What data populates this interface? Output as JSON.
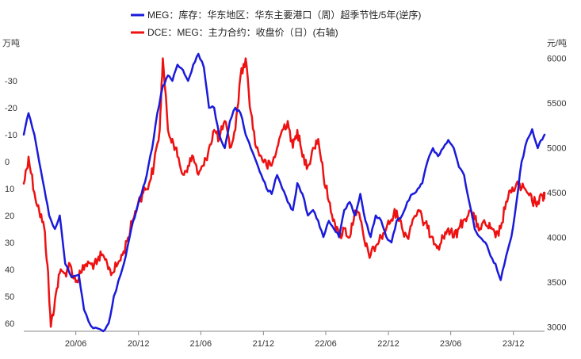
{
  "chart_data": {
    "type": "line",
    "title": "",
    "legend_position": "top-center",
    "grid": false,
    "x_axis": {
      "range": [
        "2020-01",
        "2024-03"
      ],
      "tick_labels": [
        "20/06",
        "20/12",
        "21/06",
        "21/12",
        "22/06",
        "22/12",
        "23/06",
        "23/12"
      ],
      "tick_dates": [
        "2020-06",
        "2020-12",
        "2021-06",
        "2021-12",
        "2022-06",
        "2022-12",
        "2023-06",
        "2023-12"
      ]
    },
    "y_left": {
      "unit": "万吨",
      "reversed": true,
      "range": [
        -40,
        63
      ],
      "tick_values": [
        -30,
        -20,
        -10,
        0,
        10,
        20,
        30,
        40,
        50,
        60
      ],
      "tick_labels": [
        "-30",
        "-20",
        "-10",
        "0",
        "10",
        "20",
        "30",
        "40",
        "50",
        "60"
      ]
    },
    "y_right": {
      "unit": "元/吨",
      "range": [
        2950,
        6050
      ],
      "tick_values": [
        3000,
        3500,
        4000,
        4500,
        5000,
        5500,
        6000
      ],
      "tick_labels": [
        "3000",
        "3500",
        "4000",
        "4500",
        "5000",
        "5500",
        "6000"
      ]
    },
    "series": [
      {
        "name": "MEG：库存：华东地区：华东主要港口（周）超季节性/5年(逆序)",
        "axis": "left",
        "color": "#1a1adb",
        "points": [
          [
            "2020-01-01",
            -10
          ],
          [
            "2020-01-15",
            -18
          ],
          [
            "2020-02-01",
            -10
          ],
          [
            "2020-02-15",
            0
          ],
          [
            "2020-03-01",
            10
          ],
          [
            "2020-03-15",
            20
          ],
          [
            "2020-04-01",
            25
          ],
          [
            "2020-04-15",
            20
          ],
          [
            "2020-05-01",
            38
          ],
          [
            "2020-05-20",
            43
          ],
          [
            "2020-06-10",
            42
          ],
          [
            "2020-06-25",
            55
          ],
          [
            "2020-07-15",
            61
          ],
          [
            "2020-08-05",
            62
          ],
          [
            "2020-08-20",
            63
          ],
          [
            "2020-09-05",
            60
          ],
          [
            "2020-09-20",
            50
          ],
          [
            "2020-10-10",
            42
          ],
          [
            "2020-10-25",
            35
          ],
          [
            "2020-11-10",
            25
          ],
          [
            "2020-11-25",
            18
          ],
          [
            "2020-12-10",
            12
          ],
          [
            "2020-12-25",
            5
          ],
          [
            "2021-01-10",
            -5
          ],
          [
            "2021-01-25",
            -18
          ],
          [
            "2021-02-10",
            -28
          ],
          [
            "2021-02-25",
            -32
          ],
          [
            "2021-03-10",
            -30
          ],
          [
            "2021-03-25",
            -36
          ],
          [
            "2021-04-10",
            -34
          ],
          [
            "2021-04-25",
            -30
          ],
          [
            "2021-05-10",
            -36
          ],
          [
            "2021-05-25",
            -40
          ],
          [
            "2021-06-10",
            -35
          ],
          [
            "2021-06-25",
            -20
          ],
          [
            "2021-07-10",
            -20
          ],
          [
            "2021-07-25",
            -10
          ],
          [
            "2021-08-10",
            -5
          ],
          [
            "2021-08-25",
            -15
          ],
          [
            "2021-09-10",
            -20
          ],
          [
            "2021-09-25",
            -18
          ],
          [
            "2021-10-10",
            -10
          ],
          [
            "2021-10-25",
            -5
          ],
          [
            "2021-11-10",
            0
          ],
          [
            "2021-11-25",
            5
          ],
          [
            "2021-12-10",
            10
          ],
          [
            "2021-12-25",
            12
          ],
          [
            "2022-01-10",
            5
          ],
          [
            "2022-01-25",
            10
          ],
          [
            "2022-02-10",
            15
          ],
          [
            "2022-02-25",
            18
          ],
          [
            "2022-03-10",
            8
          ],
          [
            "2022-03-25",
            12
          ],
          [
            "2022-04-10",
            20
          ],
          [
            "2022-04-25",
            18
          ],
          [
            "2022-05-10",
            22
          ],
          [
            "2022-05-25",
            28
          ],
          [
            "2022-06-10",
            22
          ],
          [
            "2022-06-25",
            25
          ],
          [
            "2022-07-10",
            28
          ],
          [
            "2022-07-25",
            18
          ],
          [
            "2022-08-10",
            15
          ],
          [
            "2022-08-25",
            20
          ],
          [
            "2022-09-10",
            12
          ],
          [
            "2022-09-25",
            22
          ],
          [
            "2022-10-10",
            28
          ],
          [
            "2022-10-25",
            20
          ],
          [
            "2022-11-10",
            22
          ],
          [
            "2022-11-25",
            28
          ],
          [
            "2022-12-10",
            30
          ],
          [
            "2022-12-25",
            22
          ],
          [
            "2023-01-10",
            20
          ],
          [
            "2023-01-25",
            15
          ],
          [
            "2023-02-10",
            12
          ],
          [
            "2023-02-25",
            10
          ],
          [
            "2023-03-10",
            8
          ],
          [
            "2023-03-25",
            0
          ],
          [
            "2023-04-10",
            -5
          ],
          [
            "2023-04-25",
            -2
          ],
          [
            "2023-05-10",
            -5
          ],
          [
            "2023-05-25",
            -8
          ],
          [
            "2023-06-10",
            -5
          ],
          [
            "2023-06-25",
            2
          ],
          [
            "2023-07-10",
            5
          ],
          [
            "2023-07-25",
            15
          ],
          [
            "2023-08-10",
            25
          ],
          [
            "2023-08-25",
            28
          ],
          [
            "2023-09-10",
            30
          ],
          [
            "2023-09-25",
            35
          ],
          [
            "2023-10-10",
            38
          ],
          [
            "2023-10-25",
            44
          ],
          [
            "2023-11-10",
            35
          ],
          [
            "2023-11-25",
            28
          ],
          [
            "2023-12-10",
            15
          ],
          [
            "2023-12-25",
            0
          ],
          [
            "2024-01-10",
            -8
          ],
          [
            "2024-01-25",
            -12
          ],
          [
            "2024-02-10",
            -5
          ],
          [
            "2024-02-20",
            -8
          ],
          [
            "2024-03-01",
            -10
          ]
        ]
      },
      {
        "name": "DCE：MEG：主力合约：收盘价（日）(右轴)",
        "axis": "right",
        "color": "#ee1111",
        "points": [
          [
            "2020-01-01",
            4600
          ],
          [
            "2020-01-15",
            4900
          ],
          [
            "2020-02-01",
            4500
          ],
          [
            "2020-02-15",
            4300
          ],
          [
            "2020-03-01",
            4100
          ],
          [
            "2020-03-10",
            3700
          ],
          [
            "2020-03-20",
            3000
          ],
          [
            "2020-04-01",
            3300
          ],
          [
            "2020-04-15",
            3600
          ],
          [
            "2020-05-01",
            3600
          ],
          [
            "2020-05-15",
            3700
          ],
          [
            "2020-06-01",
            3500
          ],
          [
            "2020-06-15",
            3600
          ],
          [
            "2020-07-01",
            3700
          ],
          [
            "2020-07-15",
            3700
          ],
          [
            "2020-08-01",
            3700
          ],
          [
            "2020-08-15",
            3800
          ],
          [
            "2020-09-01",
            3700
          ],
          [
            "2020-09-15",
            3600
          ],
          [
            "2020-10-01",
            3700
          ],
          [
            "2020-10-15",
            3800
          ],
          [
            "2020-11-01",
            4000
          ],
          [
            "2020-11-15",
            4200
          ],
          [
            "2020-12-01",
            4400
          ],
          [
            "2020-12-15",
            4500
          ],
          [
            "2021-01-01",
            4600
          ],
          [
            "2021-01-15",
            4800
          ],
          [
            "2021-02-01",
            5200
          ],
          [
            "2021-02-10",
            6000
          ],
          [
            "2021-02-25",
            5200
          ],
          [
            "2021-03-10",
            5100
          ],
          [
            "2021-03-25",
            4900
          ],
          [
            "2021-04-10",
            4700
          ],
          [
            "2021-04-25",
            4800
          ],
          [
            "2021-05-10",
            4900
          ],
          [
            "2021-05-25",
            4700
          ],
          [
            "2021-06-10",
            4800
          ],
          [
            "2021-06-25",
            5000
          ],
          [
            "2021-07-10",
            5200
          ],
          [
            "2021-07-25",
            5100
          ],
          [
            "2021-08-10",
            5300
          ],
          [
            "2021-08-25",
            5000
          ],
          [
            "2021-09-10",
            5200
          ],
          [
            "2021-09-25",
            5800
          ],
          [
            "2021-10-10",
            6000
          ],
          [
            "2021-10-25",
            5400
          ],
          [
            "2021-11-10",
            5000
          ],
          [
            "2021-11-25",
            4900
          ],
          [
            "2021-12-10",
            4800
          ],
          [
            "2021-12-25",
            4800
          ],
          [
            "2022-01-10",
            5000
          ],
          [
            "2022-01-25",
            5200
          ],
          [
            "2022-02-10",
            5300
          ],
          [
            "2022-02-25",
            5000
          ],
          [
            "2022-03-10",
            5200
          ],
          [
            "2022-03-25",
            4900
          ],
          [
            "2022-04-10",
            4800
          ],
          [
            "2022-04-25",
            5000
          ],
          [
            "2022-05-10",
            5100
          ],
          [
            "2022-05-25",
            4700
          ],
          [
            "2022-06-10",
            4400
          ],
          [
            "2022-06-25",
            4200
          ],
          [
            "2022-07-10",
            4000
          ],
          [
            "2022-07-25",
            4100
          ],
          [
            "2022-08-10",
            4000
          ],
          [
            "2022-08-25",
            4300
          ],
          [
            "2022-09-10",
            4200
          ],
          [
            "2022-09-25",
            3900
          ],
          [
            "2022-10-10",
            3800
          ],
          [
            "2022-10-25",
            3900
          ],
          [
            "2022-11-10",
            4000
          ],
          [
            "2022-11-25",
            4100
          ],
          [
            "2022-12-10",
            4200
          ],
          [
            "2022-12-25",
            4300
          ],
          [
            "2023-01-10",
            4100
          ],
          [
            "2023-01-25",
            4000
          ],
          [
            "2023-02-10",
            4200
          ],
          [
            "2023-02-25",
            4300
          ],
          [
            "2023-03-10",
            4200
          ],
          [
            "2023-03-25",
            4100
          ],
          [
            "2023-04-10",
            4000
          ],
          [
            "2023-04-25",
            3900
          ],
          [
            "2023-05-10",
            4000
          ],
          [
            "2023-05-25",
            4100
          ],
          [
            "2023-06-10",
            4000
          ],
          [
            "2023-06-25",
            4100
          ],
          [
            "2023-07-10",
            4200
          ],
          [
            "2023-07-25",
            4300
          ],
          [
            "2023-08-10",
            4200
          ],
          [
            "2023-08-25",
            4100
          ],
          [
            "2023-09-10",
            4150
          ],
          [
            "2023-09-25",
            4100
          ],
          [
            "2023-10-10",
            4000
          ],
          [
            "2023-10-25",
            4100
          ],
          [
            "2023-11-10",
            4400
          ],
          [
            "2023-11-25",
            4500
          ],
          [
            "2023-12-10",
            4600
          ],
          [
            "2023-12-25",
            4550
          ],
          [
            "2024-01-10",
            4500
          ],
          [
            "2024-01-25",
            4400
          ],
          [
            "2024-02-10",
            4400
          ],
          [
            "2024-02-25",
            4450
          ],
          [
            "2024-03-01",
            4500
          ]
        ]
      }
    ]
  }
}
